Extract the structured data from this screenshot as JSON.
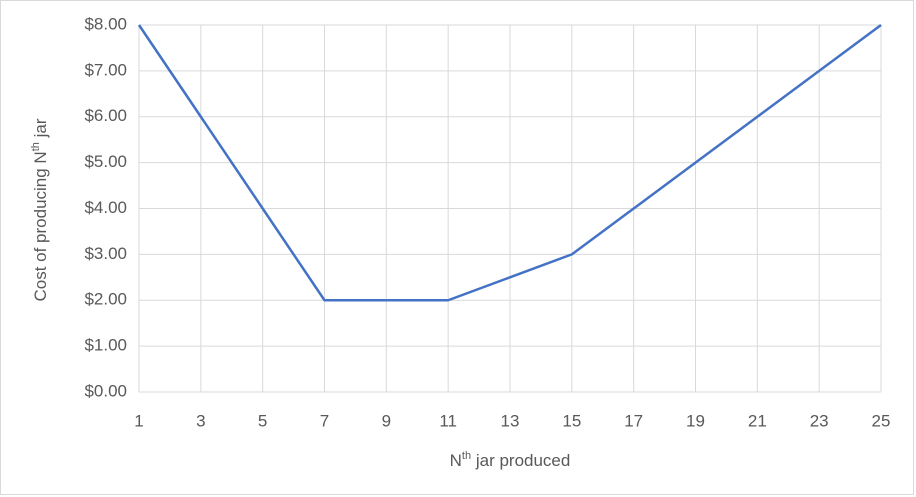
{
  "chart_data": {
    "type": "line",
    "xlabel": [
      "N",
      "th",
      " jar produced"
    ],
    "ylabel": [
      "Cost of producing N",
      "th",
      " jar"
    ],
    "x": [
      1,
      3,
      5,
      7,
      9,
      11,
      13,
      15,
      17,
      19,
      21,
      23,
      25
    ],
    "series": [
      {
        "name": "Cost",
        "color": "#4472c4",
        "values": [
          8,
          6,
          4,
          2,
          2,
          2,
          2.5,
          3,
          4,
          5,
          6,
          7,
          8
        ]
      }
    ],
    "xlim": [
      1,
      25
    ],
    "xticks": [
      1,
      3,
      5,
      7,
      9,
      11,
      13,
      15,
      17,
      19,
      21,
      23,
      25
    ],
    "ylim": [
      0,
      8
    ],
    "yticks": [
      {
        "value": 0,
        "label": "$0.00"
      },
      {
        "value": 1,
        "label": "$1.00"
      },
      {
        "value": 2,
        "label": "$2.00"
      },
      {
        "value": 3,
        "label": "$3.00"
      },
      {
        "value": 4,
        "label": "$4.00"
      },
      {
        "value": 5,
        "label": "$5.00"
      },
      {
        "value": 6,
        "label": "$6.00"
      },
      {
        "value": 7,
        "label": "$7.00"
      },
      {
        "value": 8,
        "label": "$8.00"
      }
    ],
    "grid": true
  }
}
